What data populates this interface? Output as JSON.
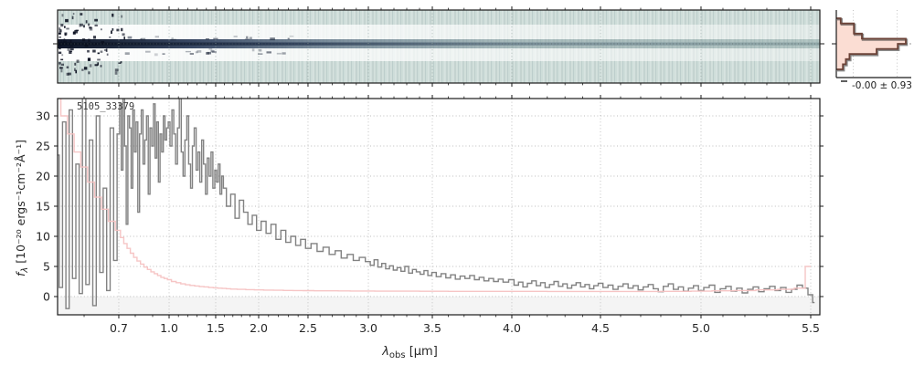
{
  "figure": {
    "object_id": "5105_33379",
    "hist_annotation": "-0.00 ± 0.93",
    "xlabel": {
      "symbol": "λ",
      "subscript": "obs",
      "rest": " [μm]"
    },
    "ylabel": {
      "symbol": "f",
      "subscript": "λ",
      "rest": " [10⁻²⁰ ergs⁻¹cm⁻²Å⁻¹]"
    }
  },
  "colors": {
    "flux_line": "#828282",
    "error_line": "#f6c2c2",
    "hist_fill": "#fbddd3",
    "hist_edge": "#6b4237",
    "hist_edge_shadow": "#2b2b2b",
    "bg_2d": "#ccdbd7",
    "trace_dark": "#131b2e",
    "grid": "#bcbcbc",
    "grid_2d": "#8fa09d",
    "shade_below_zero": "#f4f4f4",
    "spine": "#1a1a1a",
    "tick_label": "#262626"
  },
  "chart_data": [
    {
      "type": "heatmap",
      "name": "2d-spectrum-cutout",
      "title": "",
      "x_range_um": [
        0.52,
        5.56
      ],
      "description_visible_features": {
        "background": "flat light blue-grey sky with faint vertical pixel-column noise",
        "central_trace": "dark horizontal source trace at panel mid-height, strongest at blue end, fading to faint grey toward red end",
        "white_bands": "bright white horizontal bands immediately above and below the trace",
        "left_edge": "cluster of black noisy pixels at bluest wavelengths",
        "gridlines": "dotted vertical lines at major wavelength ticks and dotted horizontal line through trace center"
      }
    },
    {
      "type": "bar",
      "name": "residual-histogram",
      "orientation": "horizontal",
      "bin_relative_counts": [
        0.06,
        0.24,
        0.24,
        0.35,
        0.95,
        0.84,
        0.55,
        0.18,
        0.13,
        0.09
      ],
      "annotation": "-0.00 ± 0.93",
      "mean": -0.0,
      "sigma": 0.93,
      "legend": "none",
      "grid": "dotted vertical guides, dash-dot zero line at center"
    },
    {
      "type": "line",
      "name": "1d-extracted-spectrum",
      "title_label": "5105_33379",
      "xlabel": "λ_obs [μm]",
      "ylabel": "f_λ [10⁻²⁰ ergs⁻¹cm⁻²Å⁻¹]",
      "x_major_ticks": [
        0.7,
        1.0,
        1.5,
        2.0,
        2.5,
        3.0,
        3.5,
        4.0,
        4.5,
        5.0,
        5.5
      ],
      "x_minor_tick_step": 0.1,
      "y_ticks": [
        0,
        5,
        10,
        15,
        20,
        25,
        30
      ],
      "ylim": [
        -3.0,
        32.9
      ],
      "xlim_um": [
        0.52,
        5.56
      ],
      "grid": "dotted both axes at major ticks",
      "shaded_region": "light grey band below flux = 0",
      "x_axis_scale_anchors": [
        [
          0.52,
          0.0
        ],
        [
          0.6,
          0.0348
        ],
        [
          0.7,
          0.0803
        ],
        [
          0.8,
          0.1019
        ],
        [
          0.9,
          0.1247
        ],
        [
          1.0,
          0.1463
        ],
        [
          1.5,
          0.2074
        ],
        [
          2.0,
          0.2638
        ],
        [
          2.5,
          0.3285
        ],
        [
          3.0,
          0.4077
        ],
        [
          3.5,
          0.4916
        ],
        [
          4.0,
          0.5959
        ],
        [
          4.5,
          0.7122
        ],
        [
          5.0,
          0.8441
        ],
        [
          5.5,
          0.988
        ],
        [
          5.56,
          1.0
        ]
      ],
      "series": [
        {
          "name": "flux",
          "style": "steps-mid",
          "color": "#828282",
          "regions": [
            {
              "start": 0.52,
              "step": 0.01,
              "values": [
                23.5,
                1.5,
                29,
                -2,
                31,
                3,
                22,
                0.5,
                33,
                2,
                26,
                -1.5,
                30,
                4,
                18,
                1,
                28,
                6
              ]
            },
            {
              "start": 0.7,
              "step": 0.01,
              "values": [
                27,
                32,
                21,
                33,
                25,
                12,
                30,
                28,
                18,
                31,
                24,
                29,
                14,
                27,
                31,
                22,
                26,
                30,
                17,
                28,
                25,
                32,
                23,
                29,
                19,
                27,
                24,
                30,
                26,
                28
              ]
            },
            {
              "start": 1.0,
              "step": 0.02,
              "values": [
                29,
                25,
                31,
                27,
                22,
                28,
                33,
                24,
                20,
                26,
                30,
                22,
                18,
                25,
                28,
                21,
                24,
                19,
                26,
                22,
                17,
                23,
                20,
                24,
                18,
                21,
                19,
                22,
                17,
                20
              ]
            },
            {
              "start": 1.6,
              "step": 0.05,
              "values": [
                18,
                15,
                17,
                13,
                16,
                14,
                12,
                13.5,
                11,
                12.5,
                10.5,
                12,
                9.5,
                11,
                9,
                10,
                8.5,
                9.5,
                8,
                8.8,
                7.5,
                8.2,
                7,
                7.6,
                6.4,
                7,
                6,
                6.5
              ]
            },
            {
              "start": 3.0,
              "step": 0.03,
              "values": [
                5.8,
                5.2,
                6.1,
                4.9,
                5.5,
                4.6,
                5.1,
                4.4,
                4.8,
                4.2,
                5.0,
                3.9,
                4.5,
                4.1,
                3.7,
                4.3,
                3.5,
                4.0,
                3.3,
                3.8,
                3.1,
                3.6,
                2.9,
                3.4,
                3.0,
                3.5,
                2.8,
                3.2,
                2.6,
                3.0,
                2.5,
                2.9,
                2.4
              ]
            },
            {
              "start": 4.0,
              "step": 0.025,
              "values": [
                2.8,
                1.9,
                2.4,
                1.6,
                2.2,
                2.6,
                1.8,
                2.3,
                1.5,
                2.0,
                2.5,
                1.7,
                2.1,
                1.4,
                1.9,
                2.3,
                1.6,
                2.0,
                1.3,
                1.8,
                2.2,
                1.5,
                1.9,
                1.2,
                1.7,
                2.1,
                1.4,
                1.8,
                1.1,
                1.6,
                2.0,
                1.3,
                0.8,
                1.7,
                2.1,
                1.2,
                1.6,
                0.9,
                1.4,
                1.8,
                1.0,
                1.5,
                1.9,
                0.7,
                1.3,
                1.7,
                0.9,
                1.4,
                0.6,
                1.2,
                1.6,
                0.8,
                1.3,
                1.7,
                1.0,
                1.5,
                0.7,
                1.2,
                1.9,
                1.4,
                0.3,
                -1.0
              ]
            }
          ]
        },
        {
          "name": "uncertainty",
          "style": "steps-mid",
          "color": "#f6c2c2",
          "regions": [
            {
              "start": 0.52,
              "step": 0.02,
              "values": [
                33,
                30,
                27,
                24,
                21.5,
                19,
                16.5,
                14.5,
                12.5
              ]
            },
            {
              "start": 0.7,
              "step": 0.02,
              "values": [
                11,
                9.8,
                8.8,
                8.0,
                7.2,
                6.5,
                5.9,
                5.4,
                4.9,
                4.5,
                4.1,
                3.8,
                3.5,
                3.2,
                3.0
              ]
            },
            {
              "start": 1.0,
              "step": 0.05,
              "values": [
                2.8,
                2.5,
                2.3,
                2.1,
                1.95,
                1.85,
                1.75,
                1.65,
                1.6,
                1.5,
                1.45,
                1.4,
                1.35,
                1.3
              ]
            },
            {
              "start": 1.7,
              "step": 0.1,
              "values": [
                1.25,
                1.2,
                1.15,
                1.1,
                1.08,
                1.05,
                1.02,
                1.0,
                0.98,
                0.96,
                0.95,
                0.94,
                0.93,
                0.92
              ]
            },
            {
              "start": 3.1,
              "step": 0.2,
              "values": [
                0.9,
                0.89,
                0.88,
                0.87,
                0.86,
                0.86,
                0.85,
                0.85,
                0.85,
                0.86
              ]
            },
            {
              "start": 5.0,
              "step": 0.1,
              "values": [
                0.9,
                0.95,
                1.0,
                1.1,
                1.2
              ]
            },
            {
              "start": 5.45,
              "step": 0.05,
              "values": [
                1.4,
                5.0
              ]
            }
          ]
        }
      ]
    }
  ]
}
